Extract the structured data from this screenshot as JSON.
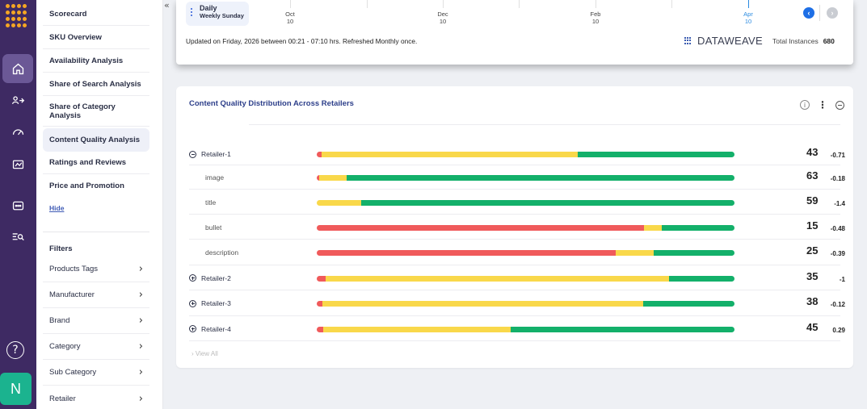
{
  "rail": {
    "icons": [
      "home-icon",
      "users-icon",
      "speedometer-icon",
      "report-icon",
      "chat-icon",
      "search-list-icon"
    ],
    "help_label": "?",
    "avatar_label": "N"
  },
  "sidenav": {
    "items": [
      {
        "label": "Scorecard"
      },
      {
        "label": "SKU Overview"
      },
      {
        "label": "Availability Analysis"
      },
      {
        "label": "Share of Search Analysis"
      },
      {
        "label": "Share of Category Analysis"
      },
      {
        "label": "Content Quality Analysis"
      },
      {
        "label": "Ratings and Reviews"
      },
      {
        "label": "Price and Promotion"
      }
    ],
    "hide_label": "Hide",
    "filters_title": "Filters",
    "filters": [
      {
        "label": "Products Tags"
      },
      {
        "label": "Manufacturer"
      },
      {
        "label": "Brand"
      },
      {
        "label": "Category"
      },
      {
        "label": "Sub Category"
      },
      {
        "label": "Retailer"
      }
    ],
    "collapse_label": "«"
  },
  "topbar": {
    "frequency": {
      "title": "Daily",
      "subtitle": "Weekly Sunday"
    },
    "timeline": [
      {
        "month": "Oct",
        "day": "10",
        "active": false
      },
      {
        "month": "Dec",
        "day": "10",
        "active": false
      },
      {
        "month": "Feb",
        "day": "10",
        "active": false
      },
      {
        "month": "Apr",
        "day": "10",
        "active": true
      }
    ],
    "prev_label": "‹",
    "next_label": "›",
    "updated_text": "Updated on Friday,  2026 between 00:21 - 07:10 hrs. Refreshed Monthly once.",
    "brand": "DATAWEAVE",
    "instances_label": "Total Instances",
    "instances_value": "680"
  },
  "card": {
    "title": "Content Quality Distribution Across Retailers",
    "info_label": "i",
    "menu_label": "⋮",
    "view_all": "View All",
    "colors": {
      "red": "#f05a5b",
      "yellow": "#f9d84a",
      "green": "#13b06a"
    },
    "rows": [
      {
        "label": "Retailer-1",
        "type": "parent",
        "expanded": true,
        "score": "43",
        "delta": "-0.71",
        "dist": {
          "red": 1.2,
          "yellow": 61.3,
          "green": 37.5
        }
      },
      {
        "label": "image",
        "type": "child",
        "score": "63",
        "delta": "-0.18",
        "dist": {
          "red": 0.6,
          "yellow": 6.5,
          "green": 92.9
        }
      },
      {
        "label": "title",
        "type": "child",
        "score": "59",
        "delta": "-1.4",
        "dist": {
          "red": 0,
          "yellow": 10.6,
          "green": 89.4
        }
      },
      {
        "label": "bullet",
        "type": "child",
        "score": "15",
        "delta": "-0.48",
        "dist": {
          "red": 78.3,
          "yellow": 4.3,
          "green": 17.4
        }
      },
      {
        "label": "description",
        "type": "child",
        "score": "25",
        "delta": "-0.39",
        "dist": {
          "red": 71.6,
          "yellow": 9.1,
          "green": 19.3
        }
      },
      {
        "label": "Retailer-2",
        "type": "parent",
        "expanded": false,
        "score": "35",
        "delta": "-1",
        "dist": {
          "red": 2.1,
          "yellow": 82.3,
          "green": 15.6
        }
      },
      {
        "label": "Retailer-3",
        "type": "parent",
        "expanded": false,
        "score": "38",
        "delta": "-0.12",
        "dist": {
          "red": 1.4,
          "yellow": 76.8,
          "green": 21.8
        }
      },
      {
        "label": "Retailer-4",
        "type": "parent",
        "expanded": false,
        "score": "45",
        "delta": "0.29",
        "dist": {
          "red": 1.6,
          "yellow": 44.9,
          "green": 53.5
        }
      }
    ]
  }
}
